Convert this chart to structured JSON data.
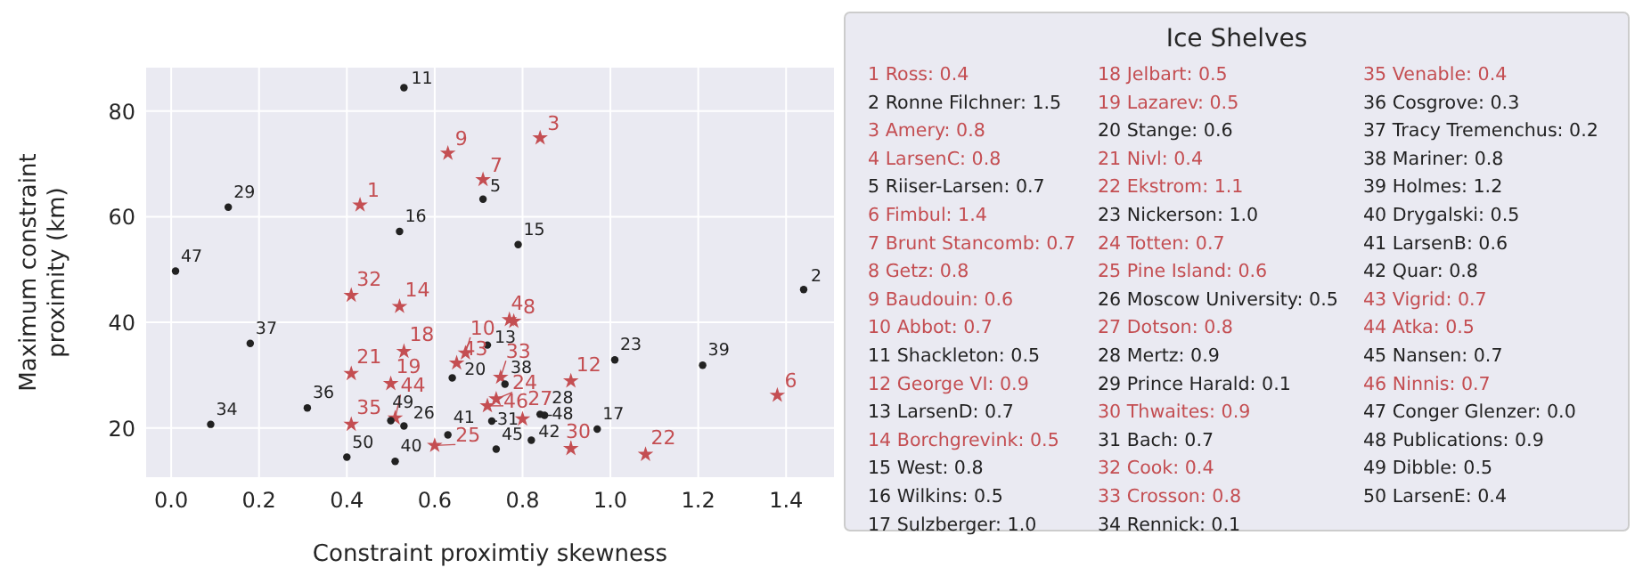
{
  "chart_data": {
    "type": "scatter",
    "xlabel": "Constraint proximtiy skewness",
    "ylabel": "Maximum constraint\nproximity (km)",
    "legend_title": "Ice Shelves",
    "grid": true,
    "xlim": [
      -0.057,
      1.509
    ],
    "ylim": [
      10.7,
      88.2
    ],
    "xticks": [
      {
        "value": 0,
        "label": "0.0"
      },
      {
        "value": 0.2,
        "label": "0.2"
      },
      {
        "value": 0.4,
        "label": "0.4"
      },
      {
        "value": 0.6,
        "label": "0.6"
      },
      {
        "value": 0.8,
        "label": "0.8"
      },
      {
        "value": 1,
        "label": "1.0"
      },
      {
        "value": 1.2,
        "label": "1.2"
      },
      {
        "value": 1.4,
        "label": "1.4"
      }
    ],
    "yticks": [
      20,
      40,
      60,
      80
    ],
    "series": [
      {
        "color": "#c44e52",
        "marker": "star",
        "x": [
          0.43,
          0.84,
          0.77,
          1.38,
          0.71,
          0.78,
          0.63,
          0.67,
          0.91,
          0.52,
          0.53,
          0.5,
          0.41,
          1.08,
          0.74,
          0.6,
          0.8,
          0.91,
          0.41,
          0.75,
          0.41,
          0.65,
          0.51,
          0.72
        ],
        "values": [
          62.2,
          74.9,
          40.5,
          26.2,
          67.0,
          40.2,
          72.0,
          34.2,
          28.9,
          43.0,
          34.5,
          28.4,
          30.3,
          15.0,
          25.5,
          16.7,
          21.7,
          16.1,
          45.1,
          29.6,
          20.7,
          32.3,
          21.9,
          24.2
        ]
      },
      {
        "color": "#222222",
        "marker": "circle",
        "x": [
          1.44,
          0.71,
          0.53,
          0.72,
          0.79,
          0.52,
          0.97,
          0.64,
          1.01,
          0.53,
          0.84,
          0.13,
          0.73,
          0.09,
          0.31,
          0.18,
          0.76,
          1.21,
          0.51,
          0.63,
          0.82,
          0.74,
          0.01,
          0.85,
          0.5,
          0.4
        ],
        "values": [
          46.2,
          63.3,
          84.4,
          35.7,
          54.7,
          57.2,
          19.8,
          29.5,
          32.9,
          20.4,
          22.6,
          61.8,
          21.3,
          20.7,
          23.8,
          36.0,
          28.3,
          31.9,
          13.7,
          18.7,
          17.7,
          16.0,
          49.7,
          22.4,
          21.4,
          14.5
        ]
      }
    ],
    "annotations": [
      {
        "text": "1",
        "x": 0.43,
        "y": 62.2
      },
      {
        "text": "2",
        "x": 1.44,
        "y": 46.2
      },
      {
        "text": "3",
        "x": 0.84,
        "y": 74.9
      },
      {
        "text": "4",
        "x": 0.77,
        "y": 40.5
      },
      {
        "text": "5",
        "x": 0.71,
        "y": 63.3
      },
      {
        "text": "6",
        "x": 1.38,
        "y": 26.2
      },
      {
        "text": "7",
        "x": 0.71,
        "y": 67.0
      },
      {
        "text": "8",
        "x": 0.78,
        "y": 40.2
      },
      {
        "text": "9",
        "x": 0.63,
        "y": 72.0
      },
      {
        "text": "10",
        "x": 0.67,
        "y": 34.2
      },
      {
        "text": "11",
        "x": 0.53,
        "y": 84.4
      },
      {
        "text": "12",
        "x": 0.91,
        "y": 28.9
      },
      {
        "text": "13",
        "x": 0.72,
        "y": 35.7
      },
      {
        "text": "14",
        "x": 0.52,
        "y": 43.0
      },
      {
        "text": "15",
        "x": 0.79,
        "y": 54.7
      },
      {
        "text": "16",
        "x": 0.52,
        "y": 57.2
      },
      {
        "text": "17",
        "x": 0.97,
        "y": 19.8
      },
      {
        "text": "18",
        "x": 0.53,
        "y": 34.5
      },
      {
        "text": "19",
        "x": 0.5,
        "y": 28.4
      },
      {
        "text": "20",
        "x": 0.64,
        "y": 29.5
      },
      {
        "text": "21",
        "x": 0.41,
        "y": 30.3
      },
      {
        "text": "22",
        "x": 1.08,
        "y": 15.0
      },
      {
        "text": "23",
        "x": 1.01,
        "y": 32.9
      },
      {
        "text": "24",
        "x": 0.74,
        "y": 25.5
      },
      {
        "text": "25",
        "x": 0.6,
        "y": 16.7
      },
      {
        "text": "26",
        "x": 0.53,
        "y": 20.4
      },
      {
        "text": "27",
        "x": 0.8,
        "y": 21.7
      },
      {
        "text": "28",
        "x": 0.84,
        "y": 22.6
      },
      {
        "text": "29",
        "x": 0.13,
        "y": 61.8
      },
      {
        "text": "30",
        "x": 0.91,
        "y": 16.1
      },
      {
        "text": "31",
        "x": 0.73,
        "y": 21.3
      },
      {
        "text": "32",
        "x": 0.41,
        "y": 45.1
      },
      {
        "text": "33",
        "x": 0.75,
        "y": 29.6
      },
      {
        "text": "34",
        "x": 0.09,
        "y": 20.7
      },
      {
        "text": "35",
        "x": 0.41,
        "y": 20.7
      },
      {
        "text": "36",
        "x": 0.31,
        "y": 23.8
      },
      {
        "text": "37",
        "x": 0.18,
        "y": 36.0
      },
      {
        "text": "38",
        "x": 0.76,
        "y": 28.3
      },
      {
        "text": "39",
        "x": 1.21,
        "y": 31.9
      },
      {
        "text": "40",
        "x": 0.51,
        "y": 13.7
      },
      {
        "text": "41",
        "x": 0.63,
        "y": 18.7
      },
      {
        "text": "42",
        "x": 0.82,
        "y": 17.7
      },
      {
        "text": "43",
        "x": 0.65,
        "y": 32.3
      },
      {
        "text": "44",
        "x": 0.51,
        "y": 21.9
      },
      {
        "text": "45",
        "x": 0.74,
        "y": 16.0
      },
      {
        "text": "46",
        "x": 0.72,
        "y": 24.2
      },
      {
        "text": "47",
        "x": 0.01,
        "y": 49.7
      },
      {
        "text": "48",
        "x": 0.85,
        "y": 22.4
      },
      {
        "text": "49",
        "x": 0.5,
        "y": 21.4
      },
      {
        "text": "50",
        "x": 0.4,
        "y": 14.5
      },
      "1 Ross: 0.4",
      "2 Ronne Filchner: 1.5",
      "3 Amery: 0.8",
      "4 LarsenC: 0.8",
      "5 Riiser-Larsen: 0.7",
      "6 Fimbul: 1.4",
      "7 Brunt Stancomb: 0.7",
      "8 Getz: 0.8",
      "9 Baudouin: 0.6",
      "10 Abbot: 0.7",
      "11 Shackleton: 0.5",
      "12 George VI: 0.9",
      "13 LarsenD: 0.7",
      "14 Borchgrevink: 0.5",
      "15 West: 0.8",
      "16 Wilkins: 0.5",
      "17 Sulzberger: 1.0",
      "18 Jelbart: 0.5",
      "19 Lazarev: 0.5",
      "20 Stange: 0.6",
      "21 Nivl: 0.4",
      "22 Ekstrom: 1.1",
      "23 Nickerson: 1.0",
      "24 Totten: 0.7",
      "25 Pine Island: 0.6",
      "26 Moscow University: 0.5",
      "27 Dotson: 0.8",
      "28 Mertz: 0.9",
      "29 Prince Harald: 0.1",
      "30 Thwaites: 0.9",
      "31 Bach: 0.7",
      "32 Cook: 0.4",
      "33 Crosson: 0.8",
      "34 Rennick: 0.1",
      "35 Venable: 0.4",
      "36 Cosgrove: 0.3",
      "37 Tracy Tremenchus: 0.2",
      "38 Mariner: 0.8",
      "39 Holmes: 1.2",
      "40 Drygalski: 0.5",
      "41 LarsenB: 0.6",
      "42 Quar: 0.8",
      "43 Vigrid: 0.7",
      "44 Atka: 0.5",
      "45 Nansen: 0.7",
      "46 Ninnis: 0.7",
      "47 Conger Glenzer: 0.0",
      "48 Publications: 0.9",
      "49 Dibble: 0.5",
      "50 LarsenE: 0.4"
    ]
  }
}
